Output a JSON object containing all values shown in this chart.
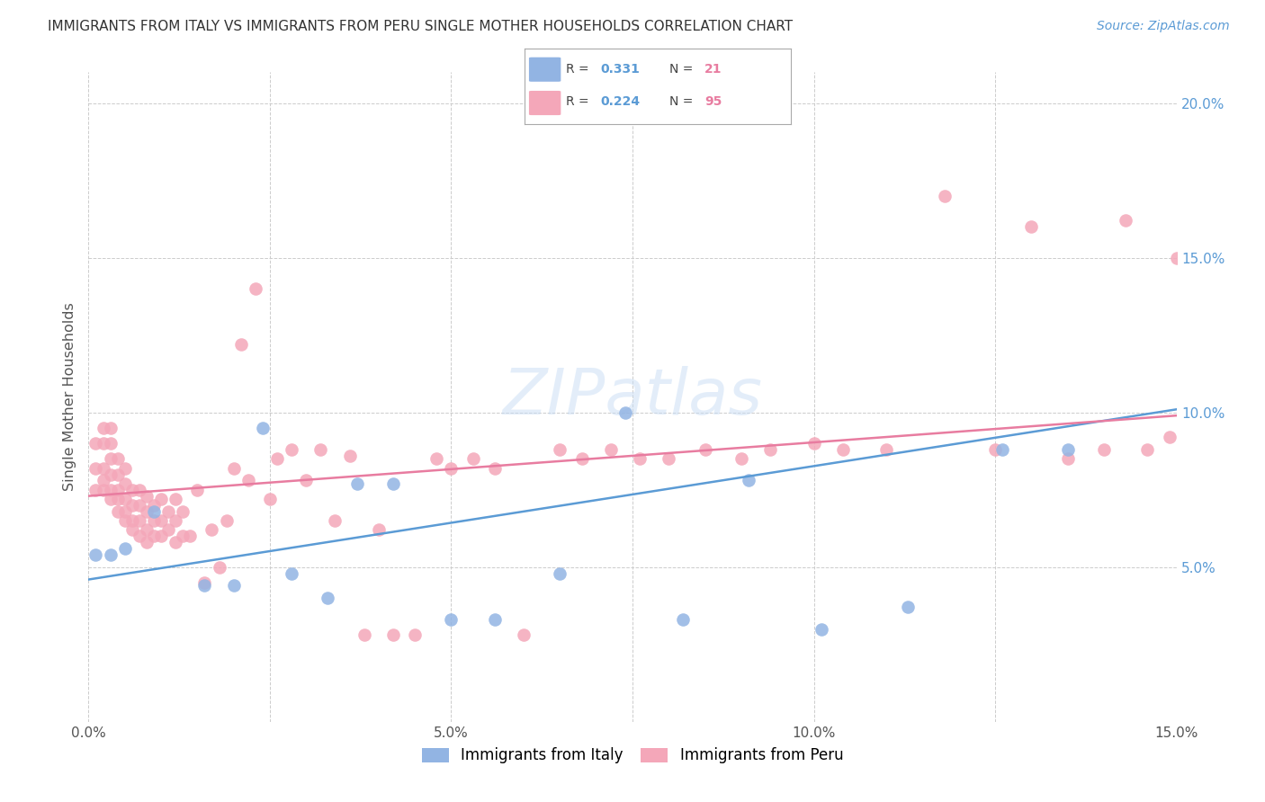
{
  "title": "IMMIGRANTS FROM ITALY VS IMMIGRANTS FROM PERU SINGLE MOTHER HOUSEHOLDS CORRELATION CHART",
  "source": "Source: ZipAtlas.com",
  "ylabel": "Single Mother Households",
  "xlim": [
    0.0,
    0.15
  ],
  "ylim": [
    0.0,
    0.21
  ],
  "xtick_vals": [
    0.0,
    0.025,
    0.05,
    0.075,
    0.1,
    0.125,
    0.15
  ],
  "xtick_labels": [
    "0.0%",
    "",
    "5.0%",
    "",
    "10.0%",
    "",
    "15.0%"
  ],
  "ytick_vals": [
    0.0,
    0.05,
    0.1,
    0.15,
    0.2
  ],
  "ytick_labels": [
    "",
    "5.0%",
    "10.0%",
    "15.0%",
    "20.0%"
  ],
  "r_italy": 0.331,
  "n_italy": 21,
  "r_peru": 0.224,
  "n_peru": 95,
  "color_italy": "#92b4e3",
  "color_peru": "#f4a7b9",
  "line_color_italy": "#5b9bd5",
  "line_color_peru": "#e87ca0",
  "italy_line_start_y": 0.046,
  "italy_line_end_y": 0.101,
  "peru_line_start_y": 0.073,
  "peru_line_end_y": 0.099,
  "legend_label_italy": "Immigrants from Italy",
  "legend_label_peru": "Immigrants from Peru",
  "watermark": "ZIPatlas",
  "italy_x": [
    0.001,
    0.003,
    0.005,
    0.009,
    0.016,
    0.02,
    0.024,
    0.028,
    0.033,
    0.037,
    0.042,
    0.05,
    0.056,
    0.065,
    0.074,
    0.082,
    0.091,
    0.101,
    0.113,
    0.126,
    0.135
  ],
  "italy_y": [
    0.054,
    0.054,
    0.056,
    0.068,
    0.044,
    0.044,
    0.095,
    0.048,
    0.04,
    0.077,
    0.077,
    0.033,
    0.033,
    0.048,
    0.1,
    0.033,
    0.078,
    0.03,
    0.037,
    0.088,
    0.088
  ],
  "peru_x": [
    0.001,
    0.001,
    0.001,
    0.002,
    0.002,
    0.002,
    0.002,
    0.002,
    0.003,
    0.003,
    0.003,
    0.003,
    0.003,
    0.003,
    0.004,
    0.004,
    0.004,
    0.004,
    0.004,
    0.005,
    0.005,
    0.005,
    0.005,
    0.005,
    0.006,
    0.006,
    0.006,
    0.006,
    0.007,
    0.007,
    0.007,
    0.007,
    0.008,
    0.008,
    0.008,
    0.008,
    0.009,
    0.009,
    0.009,
    0.01,
    0.01,
    0.01,
    0.011,
    0.011,
    0.012,
    0.012,
    0.012,
    0.013,
    0.013,
    0.014,
    0.015,
    0.016,
    0.017,
    0.018,
    0.019,
    0.02,
    0.021,
    0.022,
    0.023,
    0.025,
    0.026,
    0.028,
    0.03,
    0.032,
    0.034,
    0.036,
    0.038,
    0.04,
    0.042,
    0.045,
    0.048,
    0.05,
    0.053,
    0.056,
    0.06,
    0.065,
    0.068,
    0.072,
    0.076,
    0.08,
    0.085,
    0.09,
    0.094,
    0.1,
    0.104,
    0.11,
    0.118,
    0.125,
    0.13,
    0.135,
    0.14,
    0.143,
    0.146,
    0.149,
    0.15
  ],
  "peru_y": [
    0.075,
    0.082,
    0.09,
    0.075,
    0.078,
    0.082,
    0.09,
    0.095,
    0.072,
    0.075,
    0.08,
    0.085,
    0.09,
    0.095,
    0.068,
    0.072,
    0.075,
    0.08,
    0.085,
    0.065,
    0.068,
    0.072,
    0.077,
    0.082,
    0.062,
    0.065,
    0.07,
    0.075,
    0.06,
    0.065,
    0.07,
    0.075,
    0.058,
    0.062,
    0.068,
    0.073,
    0.06,
    0.065,
    0.07,
    0.06,
    0.065,
    0.072,
    0.062,
    0.068,
    0.058,
    0.065,
    0.072,
    0.06,
    0.068,
    0.06,
    0.075,
    0.045,
    0.062,
    0.05,
    0.065,
    0.082,
    0.122,
    0.078,
    0.14,
    0.072,
    0.085,
    0.088,
    0.078,
    0.088,
    0.065,
    0.086,
    0.028,
    0.062,
    0.028,
    0.028,
    0.085,
    0.082,
    0.085,
    0.082,
    0.028,
    0.088,
    0.085,
    0.088,
    0.085,
    0.085,
    0.088,
    0.085,
    0.088,
    0.09,
    0.088,
    0.088,
    0.17,
    0.088,
    0.16,
    0.085,
    0.088,
    0.162,
    0.088,
    0.092,
    0.15
  ]
}
